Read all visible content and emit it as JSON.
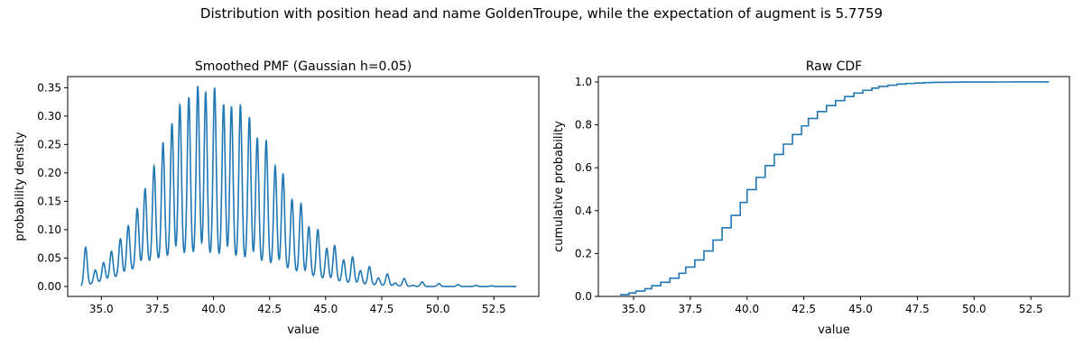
{
  "suptitle": "Distribution with position head and name GoldenTroupe, while the expectation of augment is 5.7759",
  "line_color": "#1f77b4",
  "chart_data": [
    {
      "type": "line",
      "title": "Smoothed PMF (Gaussian h=0.05)",
      "xlabel": "value",
      "ylabel": "probability density",
      "xlim": [
        33.5,
        54.5
      ],
      "ylim": [
        -0.0176,
        0.3696
      ],
      "xticks": [
        35.0,
        37.5,
        40.0,
        42.5,
        45.0,
        47.5,
        50.0,
        52.5
      ],
      "yticks": [
        0.0,
        0.05,
        0.1,
        0.15,
        0.2,
        0.25,
        0.3,
        0.35
      ],
      "xtick_labels": [
        "35.0",
        "37.5",
        "40.0",
        "42.5",
        "45.0",
        "47.5",
        "50.0",
        "52.5"
      ],
      "ytick_labels": [
        "0.00",
        "0.05",
        "0.10",
        "0.15",
        "0.20",
        "0.25",
        "0.30",
        "0.35"
      ],
      "grid": false,
      "x_range": [
        34.1,
        53.5
      ],
      "bandwidth": 0.05,
      "peaks": [
        {
          "x": 34.3,
          "y": 0.069
        },
        {
          "x": 34.73,
          "y": 0.029
        },
        {
          "x": 35.1,
          "y": 0.042
        },
        {
          "x": 35.45,
          "y": 0.062
        },
        {
          "x": 35.85,
          "y": 0.084
        },
        {
          "x": 36.2,
          "y": 0.107
        },
        {
          "x": 36.6,
          "y": 0.137
        },
        {
          "x": 36.95,
          "y": 0.172
        },
        {
          "x": 37.35,
          "y": 0.212
        },
        {
          "x": 37.75,
          "y": 0.253
        },
        {
          "x": 38.15,
          "y": 0.287
        },
        {
          "x": 38.5,
          "y": 0.32
        },
        {
          "x": 38.9,
          "y": 0.333
        },
        {
          "x": 39.3,
          "y": 0.353
        },
        {
          "x": 39.65,
          "y": 0.342
        },
        {
          "x": 40.05,
          "y": 0.35
        },
        {
          "x": 40.45,
          "y": 0.32
        },
        {
          "x": 40.8,
          "y": 0.317
        },
        {
          "x": 41.2,
          "y": 0.319
        },
        {
          "x": 41.6,
          "y": 0.298
        },
        {
          "x": 41.95,
          "y": 0.262
        },
        {
          "x": 42.35,
          "y": 0.257
        },
        {
          "x": 42.75,
          "y": 0.212
        },
        {
          "x": 43.1,
          "y": 0.198
        },
        {
          "x": 43.5,
          "y": 0.153
        },
        {
          "x": 43.9,
          "y": 0.146
        },
        {
          "x": 44.25,
          "y": 0.105
        },
        {
          "x": 44.65,
          "y": 0.1
        },
        {
          "x": 45.05,
          "y": 0.067
        },
        {
          "x": 45.4,
          "y": 0.072
        },
        {
          "x": 45.8,
          "y": 0.047
        },
        {
          "x": 46.2,
          "y": 0.052
        },
        {
          "x": 46.55,
          "y": 0.028
        },
        {
          "x": 46.95,
          "y": 0.035
        },
        {
          "x": 47.35,
          "y": 0.015
        },
        {
          "x": 47.75,
          "y": 0.022
        },
        {
          "x": 48.1,
          "y": 0.006
        },
        {
          "x": 48.5,
          "y": 0.014
        },
        {
          "x": 48.9,
          "y": 0.002
        },
        {
          "x": 49.3,
          "y": 0.008
        },
        {
          "x": 50.05,
          "y": 0.005
        },
        {
          "x": 50.9,
          "y": 0.003
        },
        {
          "x": 51.7,
          "y": 0.002
        },
        {
          "x": 52.4,
          "y": 0.001
        }
      ],
      "baseline": [
        {
          "x": 34.1,
          "y": 0.0
        },
        {
          "x": 35.0,
          "y": 0.008
        },
        {
          "x": 36.0,
          "y": 0.02
        },
        {
          "x": 37.0,
          "y": 0.04
        },
        {
          "x": 38.0,
          "y": 0.048
        },
        {
          "x": 39.0,
          "y": 0.052
        },
        {
          "x": 40.0,
          "y": 0.05
        },
        {
          "x": 41.0,
          "y": 0.046
        },
        {
          "x": 42.0,
          "y": 0.04
        },
        {
          "x": 43.0,
          "y": 0.032
        },
        {
          "x": 44.0,
          "y": 0.02
        },
        {
          "x": 45.0,
          "y": 0.012
        },
        {
          "x": 46.0,
          "y": 0.006
        },
        {
          "x": 47.0,
          "y": 0.003
        },
        {
          "x": 48.0,
          "y": 0.001
        },
        {
          "x": 49.0,
          "y": 0.0
        },
        {
          "x": 53.5,
          "y": 0.0
        }
      ]
    },
    {
      "type": "line",
      "title": "Raw CDF",
      "xlabel": "value",
      "ylabel": "cumulative probability",
      "xlim": [
        33.45,
        54.2
      ],
      "ylim": [
        0.0,
        1.025
      ],
      "xticks": [
        35.0,
        37.5,
        40.0,
        42.5,
        45.0,
        47.5,
        50.0,
        52.5
      ],
      "yticks": [
        0.0,
        0.2,
        0.4,
        0.6,
        0.8,
        1.0
      ],
      "xtick_labels": [
        "35.0",
        "37.5",
        "40.0",
        "42.5",
        "45.0",
        "47.5",
        "50.0",
        "52.5"
      ],
      "ytick_labels": [
        "0.0",
        "0.2",
        "0.4",
        "0.6",
        "0.8",
        "1.0"
      ],
      "grid": false,
      "step": true,
      "x": [
        34.4,
        34.8,
        35.1,
        35.5,
        35.8,
        36.2,
        36.6,
        37.0,
        37.3,
        37.7,
        38.1,
        38.5,
        38.9,
        39.3,
        39.7,
        40.0,
        40.4,
        40.8,
        41.2,
        41.6,
        42.0,
        42.4,
        42.7,
        43.1,
        43.5,
        43.9,
        44.3,
        44.7,
        45.1,
        45.5,
        45.8,
        46.2,
        46.6,
        47.0,
        47.4,
        47.8,
        48.2,
        48.6,
        49.0,
        49.4,
        50.0,
        50.8,
        51.6,
        52.4,
        53.3
      ],
      "y": [
        0.008,
        0.016,
        0.025,
        0.036,
        0.05,
        0.066,
        0.085,
        0.108,
        0.137,
        0.17,
        0.212,
        0.263,
        0.32,
        0.378,
        0.438,
        0.498,
        0.555,
        0.61,
        0.662,
        0.71,
        0.755,
        0.795,
        0.83,
        0.862,
        0.89,
        0.913,
        0.932,
        0.948,
        0.961,
        0.971,
        0.979,
        0.985,
        0.99,
        0.993,
        0.995,
        0.997,
        0.998,
        0.9985,
        0.999,
        0.9994,
        0.9996,
        0.9998,
        0.9999,
        1.0,
        1.0
      ]
    }
  ]
}
